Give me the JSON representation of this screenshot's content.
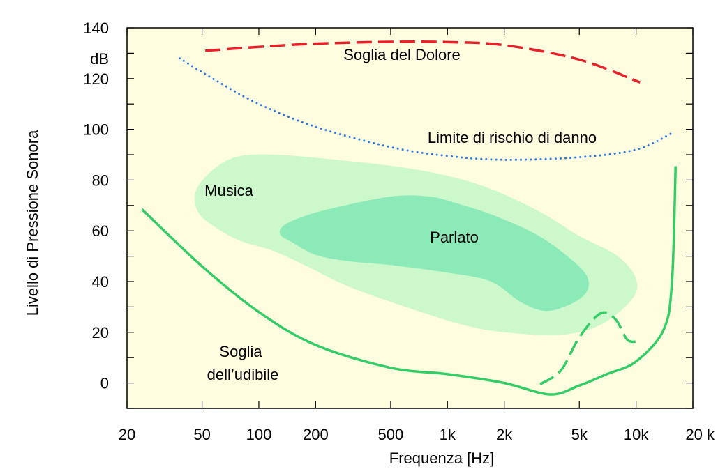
{
  "chart_data": {
    "type": "area",
    "x_scale": "log",
    "xlabel": "Frequenza [Hz]",
    "ylabel": "Livello di Pressione Sonora",
    "yunit": "dB",
    "xlim": [
      20,
      20000
    ],
    "ylim": [
      -10,
      140
    ],
    "x_tick_values": [
      20,
      50,
      100,
      200,
      500,
      1000,
      2000,
      5000,
      10000,
      20000
    ],
    "x_tick_labels": [
      "20",
      "50",
      "100",
      "200",
      "500",
      "1k",
      "2k",
      "5k",
      "10k",
      "20 k"
    ],
    "y_tick_values": [
      0,
      20,
      40,
      60,
      80,
      100,
      120,
      140
    ],
    "y_tick_labels": [
      "0",
      "20",
      "40",
      "60",
      "80",
      "100",
      "120",
      "140"
    ],
    "colors": {
      "background": "#fffde0",
      "pain": "#e8202a",
      "damage": "#2f7ae0",
      "threshold": "#33cc66",
      "music": "#ccf8cc",
      "speech": "#8ceab8"
    },
    "series": [
      {
        "name": "Soglia del Dolore",
        "style": "dashed",
        "color": "#e8202a",
        "points": [
          [
            52,
            131
          ],
          [
            100,
            132.5
          ],
          [
            200,
            133.8
          ],
          [
            500,
            134.5
          ],
          [
            1000,
            134.4
          ],
          [
            2000,
            133.2
          ],
          [
            5000,
            127.5
          ],
          [
            10500,
            118.5
          ]
        ]
      },
      {
        "name": "Limite di rischio di danno",
        "style": "dotted",
        "color": "#2f7ae0",
        "points": [
          [
            38,
            128
          ],
          [
            60,
            119
          ],
          [
            100,
            110
          ],
          [
            200,
            101
          ],
          [
            500,
            93
          ],
          [
            1000,
            89.5
          ],
          [
            2000,
            88
          ],
          [
            5000,
            89
          ],
          [
            10000,
            92
          ],
          [
            15500,
            98.5
          ]
        ]
      },
      {
        "name": "Soglia dell’udibile",
        "style": "solid",
        "color": "#33cc66",
        "points": [
          [
            24,
            68.5
          ],
          [
            50,
            46
          ],
          [
            100,
            28
          ],
          [
            200,
            15
          ],
          [
            500,
            6
          ],
          [
            1000,
            3.5
          ],
          [
            2000,
            0
          ],
          [
            3500,
            -4.5
          ],
          [
            5000,
            -1
          ],
          [
            7000,
            3.5
          ],
          [
            10000,
            8.5
          ],
          [
            14000,
            21
          ],
          [
            15500,
            40
          ],
          [
            16200,
            85.5
          ]
        ]
      },
      {
        "name": "",
        "style": "dashed",
        "color": "#33cc66",
        "points": [
          [
            3100,
            -0.5
          ],
          [
            4000,
            5
          ],
          [
            5000,
            18
          ],
          [
            6500,
            27.5
          ],
          [
            7800,
            25
          ],
          [
            9000,
            17
          ],
          [
            10300,
            16.5
          ]
        ]
      }
    ],
    "regions": [
      {
        "name": "Musica",
        "color": "#ccf8cc",
        "boundary": [
          [
            46,
            75
          ],
          [
            55,
            83
          ],
          [
            75,
            89
          ],
          [
            120,
            90
          ],
          [
            300,
            87.5
          ],
          [
            700,
            84
          ],
          [
            1500,
            78
          ],
          [
            3000,
            68
          ],
          [
            5000,
            58
          ],
          [
            8000,
            50
          ],
          [
            10000,
            41
          ],
          [
            9500,
            33
          ],
          [
            6500,
            23
          ],
          [
            4000,
            19
          ],
          [
            2000,
            20
          ],
          [
            1200,
            23
          ],
          [
            600,
            30
          ],
          [
            300,
            38
          ],
          [
            180,
            46
          ],
          [
            120,
            52
          ],
          [
            80,
            56
          ],
          [
            60,
            61
          ],
          [
            48,
            67
          ]
        ]
      },
      {
        "name": "Parlato",
        "color": "#8ceab8",
        "boundary": [
          [
            135,
            62
          ],
          [
            170,
            65.5
          ],
          [
            250,
            69
          ],
          [
            500,
            73.5
          ],
          [
            800,
            73.5
          ],
          [
            1100,
            71
          ],
          [
            1700,
            66.5
          ],
          [
            2800,
            59.5
          ],
          [
            4000,
            52
          ],
          [
            5500,
            42
          ],
          [
            5200,
            34
          ],
          [
            3500,
            28.5
          ],
          [
            2500,
            31.5
          ],
          [
            1700,
            40
          ],
          [
            1000,
            43.5
          ],
          [
            500,
            46.5
          ],
          [
            300,
            48
          ],
          [
            200,
            50.5
          ],
          [
            150,
            55.5
          ],
          [
            130,
            58.5
          ]
        ]
      }
    ],
    "annotations": [
      {
        "text": "Soglia del Dolore"
      },
      {
        "text": "Limite di rischio di danno"
      },
      {
        "text": "Musica"
      },
      {
        "text": "Parlato"
      },
      {
        "text": "Soglia"
      },
      {
        "text": "dell’udibile"
      }
    ],
    "grid": false,
    "legend": "none"
  }
}
